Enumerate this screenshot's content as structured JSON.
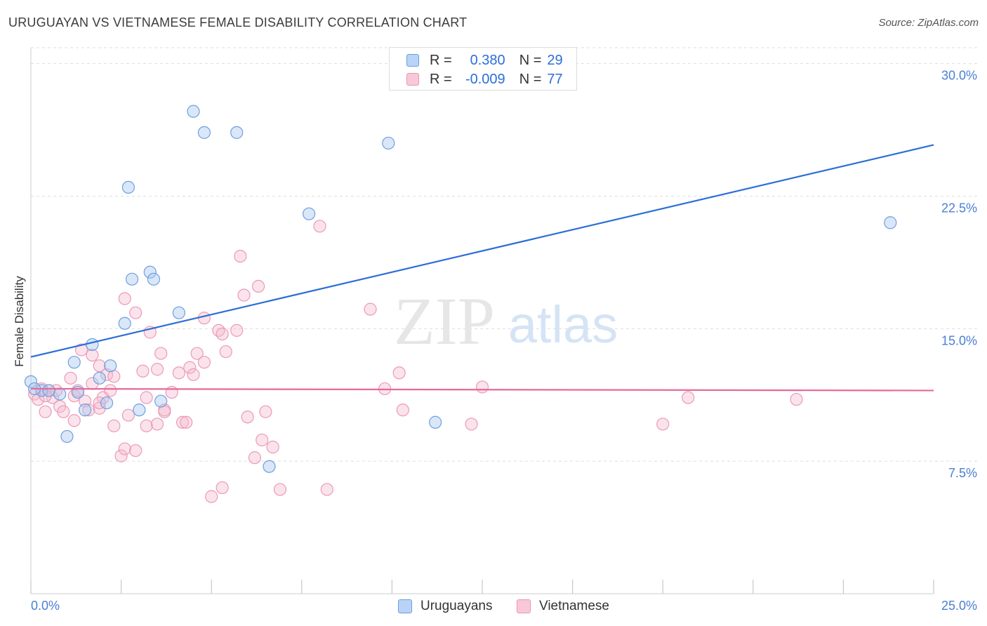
{
  "title": "URUGUAYAN VS VIETNAMESE FEMALE DISABILITY CORRELATION CHART",
  "source": "Source: ZipAtlas.com",
  "colors": {
    "blue": "#2d6ed6",
    "pink": "#e8689a",
    "grid": "#dddddd",
    "axis_text": "#4a7fd4"
  },
  "legend": {
    "r_label": "R =",
    "n_label": "N =",
    "blue": {
      "r": "0.380",
      "n": "29"
    },
    "pink": {
      "r": "-0.009",
      "n": "77"
    }
  },
  "chart_data": {
    "type": "scatter",
    "title": "URUGUAYAN VS VIETNAMESE FEMALE DISABILITY CORRELATION CHART",
    "xlabel": "",
    "ylabel": "Female Disability",
    "xlim": [
      0,
      25
    ],
    "ylim": [
      0,
      30.9
    ],
    "x_tick_labels": [
      "0.0%",
      "25.0%"
    ],
    "y_ticks": [
      7.5,
      15.0,
      22.5,
      30.0
    ],
    "y_tick_labels": [
      "7.5%",
      "15.0%",
      "22.5%",
      "30.0%"
    ],
    "watermark": {
      "a": "ZIP",
      "b": "atlas"
    },
    "series": [
      {
        "name": "Uruguayans",
        "color": "#2d6ed6",
        "trend": {
          "x0": 0,
          "y0": 13.4,
          "x1": 25,
          "y1": 25.4
        },
        "points": [
          [
            0.0,
            12.0
          ],
          [
            0.3,
            11.5
          ],
          [
            0.5,
            11.5
          ],
          [
            0.8,
            11.3
          ],
          [
            1.0,
            8.9
          ],
          [
            1.2,
            13.1
          ],
          [
            1.3,
            11.4
          ],
          [
            1.5,
            10.4
          ],
          [
            1.7,
            14.1
          ],
          [
            1.9,
            12.2
          ],
          [
            2.1,
            10.8
          ],
          [
            2.2,
            12.9
          ],
          [
            2.6,
            15.3
          ],
          [
            2.7,
            23.0
          ],
          [
            2.8,
            17.8
          ],
          [
            3.0,
            10.4
          ],
          [
            3.3,
            18.2
          ],
          [
            3.4,
            17.8
          ],
          [
            3.6,
            10.9
          ],
          [
            4.1,
            15.9
          ],
          [
            4.5,
            27.3
          ],
          [
            4.8,
            26.1
          ],
          [
            5.7,
            26.1
          ],
          [
            6.6,
            7.2
          ],
          [
            7.7,
            21.5
          ],
          [
            9.9,
            25.5
          ],
          [
            11.2,
            9.7
          ],
          [
            23.8,
            21.0
          ],
          [
            0.1,
            11.6
          ]
        ]
      },
      {
        "name": "Vietnamese",
        "color": "#e8689a",
        "trend": {
          "x0": 0,
          "y0": 11.6,
          "x1": 25,
          "y1": 11.5
        },
        "points": [
          [
            0.1,
            11.3
          ],
          [
            0.2,
            11.0
          ],
          [
            0.3,
            11.6
          ],
          [
            0.4,
            10.3
          ],
          [
            0.5,
            11.5
          ],
          [
            0.6,
            11.1
          ],
          [
            0.7,
            11.5
          ],
          [
            0.8,
            10.6
          ],
          [
            0.9,
            10.3
          ],
          [
            1.1,
            12.2
          ],
          [
            1.2,
            11.2
          ],
          [
            1.2,
            9.8
          ],
          [
            1.3,
            11.5
          ],
          [
            1.4,
            13.8
          ],
          [
            1.5,
            10.9
          ],
          [
            1.6,
            10.4
          ],
          [
            1.7,
            11.9
          ],
          [
            1.7,
            13.5
          ],
          [
            1.9,
            10.5
          ],
          [
            1.9,
            12.9
          ],
          [
            2.0,
            11.1
          ],
          [
            2.1,
            12.4
          ],
          [
            2.2,
            11.5
          ],
          [
            2.3,
            12.3
          ],
          [
            2.3,
            9.5
          ],
          [
            2.5,
            7.8
          ],
          [
            2.6,
            8.2
          ],
          [
            2.6,
            16.7
          ],
          [
            2.7,
            10.1
          ],
          [
            2.9,
            15.9
          ],
          [
            2.9,
            8.1
          ],
          [
            3.1,
            12.6
          ],
          [
            3.2,
            11.1
          ],
          [
            3.2,
            9.5
          ],
          [
            3.3,
            14.8
          ],
          [
            3.5,
            12.7
          ],
          [
            3.5,
            9.6
          ],
          [
            3.6,
            13.6
          ],
          [
            3.7,
            10.4
          ],
          [
            3.7,
            10.3
          ],
          [
            3.9,
            11.4
          ],
          [
            4.1,
            12.5
          ],
          [
            4.2,
            9.7
          ],
          [
            4.3,
            9.7
          ],
          [
            4.4,
            12.8
          ],
          [
            4.5,
            12.4
          ],
          [
            4.6,
            13.6
          ],
          [
            4.8,
            13.1
          ],
          [
            4.8,
            15.6
          ],
          [
            5.0,
            5.5
          ],
          [
            5.2,
            14.9
          ],
          [
            5.3,
            6.0
          ],
          [
            5.3,
            14.7
          ],
          [
            5.4,
            13.7
          ],
          [
            5.7,
            14.9
          ],
          [
            5.8,
            19.1
          ],
          [
            5.9,
            16.9
          ],
          [
            6.0,
            10.0
          ],
          [
            6.2,
            7.7
          ],
          [
            6.3,
            17.4
          ],
          [
            6.4,
            8.7
          ],
          [
            6.5,
            10.3
          ],
          [
            6.7,
            8.3
          ],
          [
            6.9,
            5.9
          ],
          [
            8.0,
            20.8
          ],
          [
            8.2,
            5.9
          ],
          [
            9.4,
            16.1
          ],
          [
            9.8,
            11.6
          ],
          [
            10.2,
            12.5
          ],
          [
            10.3,
            10.4
          ],
          [
            12.2,
            9.6
          ],
          [
            12.5,
            11.7
          ],
          [
            17.5,
            9.6
          ],
          [
            18.2,
            11.1
          ],
          [
            21.2,
            11.0
          ],
          [
            1.9,
            10.8
          ],
          [
            0.4,
            11.2
          ]
        ]
      }
    ]
  }
}
